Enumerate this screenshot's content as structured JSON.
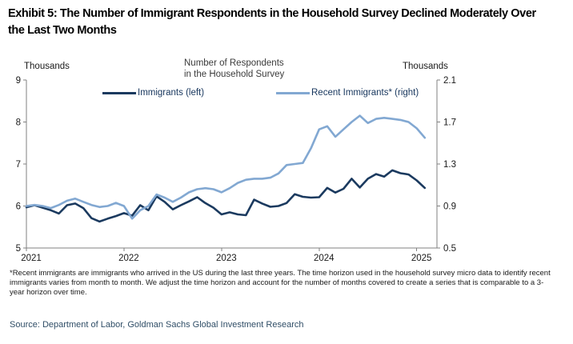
{
  "exhibit_title": {
    "line1": "Exhibit 5: The Number of Immigrant Respondents in the Household Survey Declined Moderately Over",
    "line2": "the Last Two Months"
  },
  "chart": {
    "left_axis_unit": "Thousands",
    "right_axis_unit": "Thousands",
    "center_title_line1": "Number of Respondents",
    "center_title_line2": "in the Household Survey"
  },
  "chart_data": {
    "type": "line",
    "title": "Number of Respondents in the Household Survey",
    "x_start": "Jan 2021",
    "x_end": "Feb 2025",
    "frequency": "monthly",
    "x_tick_labels": [
      "2021",
      "2022",
      "2023",
      "2024",
      "2025"
    ],
    "left_axis": {
      "unit": "Thousands",
      "range": [
        5,
        9
      ],
      "ticks": [
        9,
        8,
        7,
        6,
        5
      ]
    },
    "right_axis": {
      "unit": "Thousands",
      "range": [
        0.5,
        2.1
      ],
      "ticks": [
        2.1,
        1.7,
        1.3,
        0.9,
        0.5
      ]
    },
    "grid": false,
    "legend_position": "top",
    "series": [
      {
        "name": "Immigrants (left)",
        "axis": "left",
        "color": "#1b3a5f",
        "values": [
          5.97,
          6.02,
          5.96,
          5.9,
          5.82,
          6.02,
          6.06,
          5.95,
          5.71,
          5.63,
          5.7,
          5.76,
          5.83,
          5.77,
          6.02,
          5.9,
          6.23,
          6.1,
          5.92,
          6.02,
          6.11,
          6.21,
          6.07,
          5.96,
          5.8,
          5.85,
          5.8,
          5.78,
          6.15,
          6.06,
          5.98,
          6.0,
          6.07,
          6.28,
          6.22,
          6.2,
          6.21,
          6.43,
          6.32,
          6.41,
          6.65,
          6.44,
          6.65,
          6.76,
          6.7,
          6.85,
          6.78,
          6.75,
          6.61,
          6.43
        ]
      },
      {
        "name": "Recent Immigrants* (right)",
        "axis": "right",
        "color": "#82a8d2",
        "values": [
          0.9,
          0.91,
          0.9,
          0.88,
          0.91,
          0.95,
          0.97,
          0.94,
          0.91,
          0.89,
          0.9,
          0.93,
          0.9,
          0.78,
          0.86,
          0.9,
          1.01,
          0.98,
          0.94,
          0.98,
          1.03,
          1.06,
          1.07,
          1.06,
          1.03,
          1.07,
          1.12,
          1.15,
          1.16,
          1.16,
          1.17,
          1.21,
          1.29,
          1.3,
          1.31,
          1.45,
          1.63,
          1.66,
          1.56,
          1.63,
          1.7,
          1.76,
          1.69,
          1.73,
          1.74,
          1.73,
          1.72,
          1.7,
          1.64,
          1.55
        ]
      }
    ]
  },
  "footnote": "*Recent immigrants are immigrants who arrived in the US during the last three years. The time horizon used in the household survey micro data to identify recent immigrants varies from month to month. We adjust the time horizon and account for the number of months covered to create a series that is comparable to a 3-year horizon over time.",
  "source": "Source: Department of Labor, Goldman Sachs Global Investment Research"
}
